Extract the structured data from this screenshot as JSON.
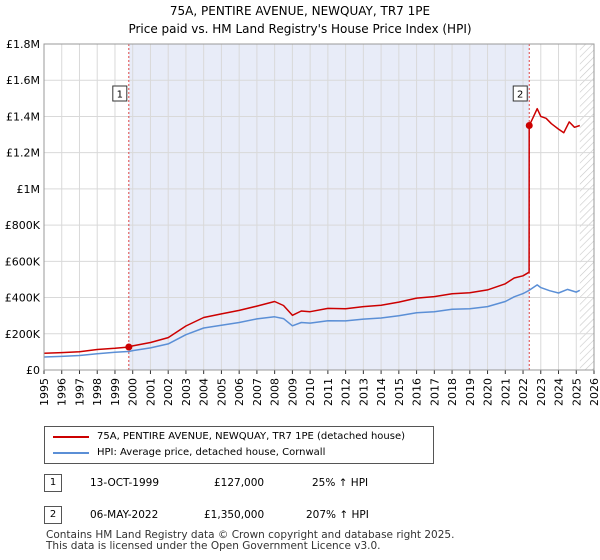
{
  "chart_data": {
    "type": "line",
    "title": "75A, PENTIRE AVENUE, NEWQUAY, TR7 1PE",
    "subtitle": "Price paid vs. HM Land Registry's House Price Index (HPI)",
    "xlabel": "",
    "ylabel": "",
    "xlim": [
      1995,
      2026
    ],
    "ylim": [
      0,
      1800000
    ],
    "x_ticks": [
      "1995",
      "1996",
      "1997",
      "1998",
      "1999",
      "2000",
      "2001",
      "2002",
      "2003",
      "2004",
      "2005",
      "2006",
      "2007",
      "2008",
      "2009",
      "2010",
      "2011",
      "2012",
      "2013",
      "2014",
      "2015",
      "2016",
      "2017",
      "2018",
      "2019",
      "2020",
      "2021",
      "2022",
      "2023",
      "2024",
      "2025",
      "2026"
    ],
    "y_ticks": [
      {
        "value": 0,
        "label": "£0"
      },
      {
        "value": 200000,
        "label": "£200K"
      },
      {
        "value": 400000,
        "label": "£400K"
      },
      {
        "value": 600000,
        "label": "£600K"
      },
      {
        "value": 800000,
        "label": "£800K"
      },
      {
        "value": 1000000,
        "label": "£1M"
      },
      {
        "value": 1200000,
        "label": "£1.2M"
      },
      {
        "value": 1400000,
        "label": "£1.4M"
      },
      {
        "value": 1600000,
        "label": "£1.6M"
      },
      {
        "value": 1800000,
        "label": "£1.8M"
      }
    ],
    "grid": true,
    "shaded_period": {
      "from": 1999.78,
      "to": 2022.35
    },
    "future_hatch_from": 2025.2,
    "series": [
      {
        "name": "75A, PENTIRE AVENUE, NEWQUAY, TR7 1PE (detached house)",
        "color": "#cc0000",
        "x": [
          1995.0,
          1996.0,
          1997.0,
          1998.0,
          1999.0,
          1999.78,
          2000.0,
          2001.0,
          2002.0,
          2003.0,
          2004.0,
          2005.0,
          2006.0,
          2007.0,
          2008.0,
          2008.5,
          2009.0,
          2009.5,
          2010.0,
          2011.0,
          2012.0,
          2013.0,
          2014.0,
          2015.0,
          2016.0,
          2017.0,
          2018.0,
          2019.0,
          2020.0,
          2021.0,
          2021.5,
          2022.0,
          2022.34,
          2022.35,
          2022.5,
          2022.8,
          2023.0,
          2023.3,
          2023.6,
          2024.0,
          2024.3,
          2024.6,
          2024.9,
          2025.2
        ],
        "y": [
          93000,
          96000,
          101000,
          113000,
          120000,
          127000,
          133000,
          152000,
          179000,
          243000,
          290000,
          310000,
          329000,
          353000,
          378000,
          356000,
          302000,
          326000,
          322000,
          340000,
          338000,
          350000,
          357000,
          375000,
          397000,
          405000,
          421000,
          427000,
          442000,
          476000,
          508000,
          520000,
          540000,
          1350000,
          1380000,
          1443000,
          1400000,
          1390000,
          1360000,
          1330000,
          1310000,
          1370000,
          1340000,
          1350000
        ]
      },
      {
        "name": "HPI: Average price, detached house, Cornwall",
        "color": "#5b8fd6",
        "x": [
          1995.0,
          1996.0,
          1997.0,
          1998.0,
          1999.0,
          1999.78,
          2000.0,
          2001.0,
          2002.0,
          2003.0,
          2004.0,
          2005.0,
          2006.0,
          2007.0,
          2008.0,
          2008.5,
          2009.0,
          2009.5,
          2010.0,
          2011.0,
          2012.0,
          2013.0,
          2014.0,
          2015.0,
          2016.0,
          2017.0,
          2018.0,
          2019.0,
          2020.0,
          2021.0,
          2021.5,
          2022.0,
          2022.35,
          2022.8,
          2023.0,
          2023.5,
          2024.0,
          2024.5,
          2025.0,
          2025.2
        ],
        "y": [
          72000,
          75000,
          80000,
          90000,
          98000,
          102000,
          107000,
          122000,
          144000,
          195000,
          232000,
          247000,
          262000,
          282000,
          294000,
          284000,
          244000,
          262000,
          259000,
          272000,
          271000,
          281000,
          287000,
          299000,
          316000,
          322000,
          335000,
          338000,
          350000,
          378000,
          404000,
          422000,
          440000,
          470000,
          455000,
          438000,
          425000,
          445000,
          430000,
          440000
        ]
      }
    ],
    "sale_markers": [
      {
        "label": "1",
        "x": 1999.78,
        "y": 127000
      },
      {
        "label": "2",
        "x": 2022.35,
        "y": 1350000
      }
    ]
  },
  "legend": {
    "items": [
      {
        "label": "75A, PENTIRE AVENUE, NEWQUAY, TR7 1PE (detached house)",
        "color": "#cc0000"
      },
      {
        "label": "HPI: Average price, detached house, Cornwall",
        "color": "#5b8fd6"
      }
    ]
  },
  "transactions": [
    {
      "num": "1",
      "date": "13-OCT-1999",
      "price": "£127,000",
      "hpi": "25% ↑ HPI"
    },
    {
      "num": "2",
      "date": "06-MAY-2022",
      "price": "£1,350,000",
      "hpi": "207% ↑ HPI"
    }
  ],
  "footer": {
    "line1": "Contains HM Land Registry data © Crown copyright and database right 2025.",
    "line2": "This data is licensed under the Open Government Licence v3.0."
  }
}
